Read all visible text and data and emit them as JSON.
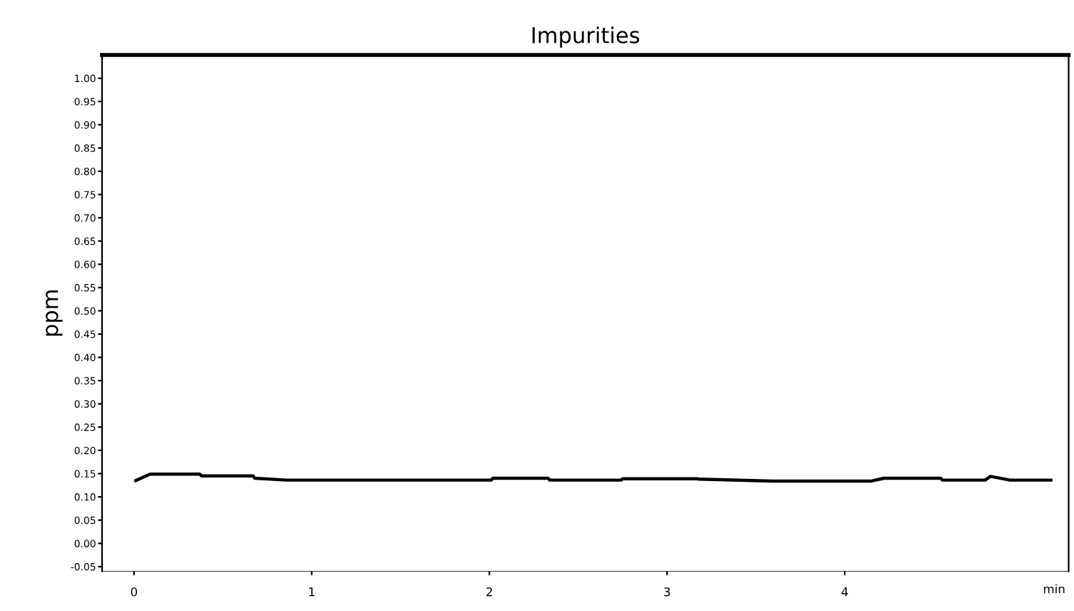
{
  "chart_data": {
    "type": "line",
    "title": "Impurities",
    "ylabel": "ppm",
    "xlabel": "min",
    "x": [
      0.01,
      0.09,
      0.37,
      0.38,
      0.46,
      0.67,
      0.68,
      0.86,
      2.01,
      2.02,
      2.15,
      2.33,
      2.34,
      2.5,
      2.74,
      2.75,
      2.92,
      3.17,
      3.18,
      3.59,
      4.15,
      4.22,
      4.54,
      4.55,
      4.79,
      4.82,
      4.93,
      5.16
    ],
    "series": [
      {
        "color": "#000000",
        "values": [
          0.135,
          0.149,
          0.149,
          0.145,
          0.145,
          0.145,
          0.14,
          0.136,
          0.136,
          0.14,
          0.14,
          0.14,
          0.136,
          0.136,
          0.136,
          0.139,
          0.139,
          0.139,
          0.138,
          0.134,
          0.134,
          0.14,
          0.14,
          0.136,
          0.136,
          0.144,
          0.136,
          0.136
        ]
      }
    ],
    "xlim": [
      -0.18,
      5.26
    ],
    "ylim": [
      -0.06,
      1.05
    ],
    "xticks": [
      0,
      1,
      2,
      3,
      4
    ],
    "yticks": [
      {
        "value": -0.05,
        "label": "-0.05"
      },
      {
        "value": 0.0,
        "label": "0.00"
      },
      {
        "value": 0.05,
        "label": "0.05"
      },
      {
        "value": 0.1,
        "label": "0.10"
      },
      {
        "value": 0.15,
        "label": "0.15"
      },
      {
        "value": 0.2,
        "label": "0.20"
      },
      {
        "value": 0.25,
        "label": "0.25"
      },
      {
        "value": 0.3,
        "label": "0.30"
      },
      {
        "value": 0.35,
        "label": "0.35"
      },
      {
        "value": 0.4,
        "label": "0.40"
      },
      {
        "value": 0.45,
        "label": "0.45"
      },
      {
        "value": 0.5,
        "label": "0.50"
      },
      {
        "value": 0.55,
        "label": "0.55"
      },
      {
        "value": 0.6,
        "label": "0.60"
      },
      {
        "value": 0.65,
        "label": "0.65"
      },
      {
        "value": 0.7,
        "label": "0.70"
      },
      {
        "value": 0.75,
        "label": "0.75"
      },
      {
        "value": 0.8,
        "label": "0.80"
      },
      {
        "value": 0.85,
        "label": "0.85"
      },
      {
        "value": 0.9,
        "label": "0.90"
      },
      {
        "value": 0.95,
        "label": "0.95"
      },
      {
        "value": 1.0,
        "label": "1.00"
      }
    ],
    "grid": false,
    "legend": false,
    "marker": "none",
    "line_style": "solid"
  }
}
